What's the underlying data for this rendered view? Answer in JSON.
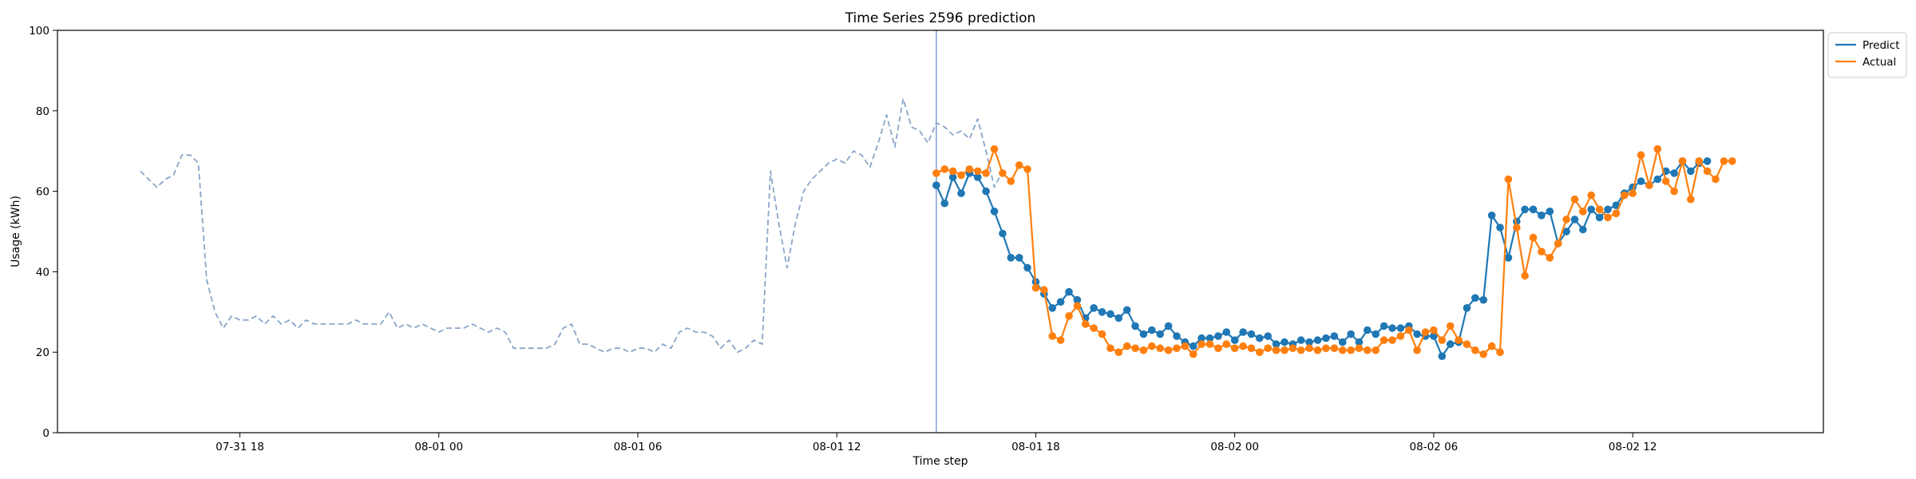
{
  "chart_data": {
    "type": "line",
    "title": "Time Series 2596 prediction",
    "xlabel": "Time step",
    "ylabel": "Usage (kWh)",
    "ylim": [
      0,
      100
    ],
    "yticks": [
      0,
      20,
      40,
      60,
      80,
      100
    ],
    "xlim": [
      "2025-07-31 12:30",
      "2025-08-02 17:45"
    ],
    "xticks": [
      {
        "t": "2025-07-31 18:00",
        "label": "07-31 18"
      },
      {
        "t": "2025-08-01 00:00",
        "label": "08-01 00"
      },
      {
        "t": "2025-08-01 06:00",
        "label": "08-01 06"
      },
      {
        "t": "2025-08-01 12:00",
        "label": "08-01 12"
      },
      {
        "t": "2025-08-01 18:00",
        "label": "08-01 18"
      },
      {
        "t": "2025-08-02 00:00",
        "label": "08-02 00"
      },
      {
        "t": "2025-08-02 06:00",
        "label": "08-02 06"
      },
      {
        "t": "2025-08-02 12:00",
        "label": "08-02 12"
      }
    ],
    "forecast_start": "2025-08-01 15:00",
    "grid": false,
    "legend": "top-right",
    "series": [
      {
        "name": "",
        "role": "history",
        "style": "dashed",
        "color": "#8aa5c8",
        "start": "2025-07-31 15:00",
        "step_minutes": 15,
        "values": [
          65,
          63,
          61,
          63,
          64,
          69,
          69,
          67,
          38,
          30,
          26,
          29,
          28,
          28,
          29,
          27,
          29,
          27,
          28,
          26,
          28,
          27,
          27,
          27,
          27,
          27,
          28,
          27,
          27,
          27,
          30,
          26,
          27,
          26,
          27,
          26,
          25,
          26,
          26,
          26,
          27,
          26,
          25,
          26,
          25,
          21,
          21,
          21,
          21,
          21,
          22,
          26,
          27,
          22,
          22,
          21,
          20,
          21,
          21,
          20,
          21,
          21,
          20,
          22,
          21,
          25,
          26,
          25,
          25,
          24,
          21,
          23,
          20,
          21,
          23,
          22,
          65,
          52,
          41,
          52,
          60,
          63,
          65,
          67,
          68,
          67,
          70,
          69,
          66,
          72,
          79,
          71,
          83,
          76,
          75,
          72,
          77,
          76,
          74,
          75,
          73,
          78,
          70,
          61,
          65
        ]
      },
      {
        "name": "Predict",
        "role": "prediction",
        "style": "line-markers",
        "color": "#1f77b4",
        "start": "2025-08-01 15:00",
        "step_minutes": 15,
        "values": [
          61.5,
          57,
          63.5,
          59.5,
          64.5,
          63.5,
          60,
          55,
          49.5,
          43.5,
          43.5,
          41,
          37.5,
          34.5,
          31,
          32.5,
          35,
          33,
          28.5,
          31,
          30,
          29.5,
          28.5,
          30.5,
          26.5,
          24.5,
          25.5,
          24.5,
          26.5,
          24,
          22.5,
          21.5,
          23.5,
          23.5,
          24,
          25,
          23,
          25,
          24.5,
          23.5,
          24,
          22,
          22.5,
          22,
          23,
          22.5,
          23,
          23.5,
          24,
          22.5,
          24.5,
          22.5,
          25.5,
          24.5,
          26.5,
          26,
          26,
          26.5,
          24.5,
          24,
          24,
          19,
          22,
          22.5,
          31,
          33.5,
          33,
          54,
          51,
          43.5,
          52.5,
          55.5,
          55.5,
          54,
          55,
          47,
          50,
          53,
          50.5,
          55.5,
          53.5,
          55.5,
          56.5,
          59.5,
          61,
          62.5,
          61.5,
          63,
          65,
          64.5,
          67.5,
          65,
          67,
          67.5
        ]
      },
      {
        "name": "Actual",
        "role": "actual",
        "style": "line-markers",
        "color": "#ff7f0e",
        "start": "2025-08-01 15:00",
        "step_minutes": 15,
        "values": [
          64.5,
          65.5,
          65,
          64,
          65.5,
          65,
          64.5,
          70.5,
          64.5,
          62.5,
          66.5,
          65.5,
          36,
          35.5,
          24,
          23,
          29,
          31.5,
          27,
          26,
          24.5,
          21,
          20,
          21.5,
          21,
          20.5,
          21.5,
          21,
          20.5,
          21,
          21.5,
          19.5,
          22,
          22,
          21,
          22,
          21,
          21.5,
          21,
          20,
          21,
          20.5,
          20.5,
          21,
          20.5,
          21,
          20.5,
          21,
          21,
          20.5,
          20.5,
          21,
          20.5,
          20.5,
          23,
          23,
          24,
          25.5,
          20.5,
          25,
          25.5,
          23,
          26.5,
          23,
          22,
          20.5,
          19.5,
          21.5,
          20,
          63,
          51,
          39,
          48.5,
          45,
          43.5,
          47,
          53,
          58,
          55,
          59,
          55.5,
          53.5,
          54.5,
          59,
          59.5,
          69,
          61.5,
          70.5,
          62.5,
          60,
          67.5,
          58,
          67.5,
          65,
          63,
          67.5,
          67.5
        ]
      }
    ]
  }
}
